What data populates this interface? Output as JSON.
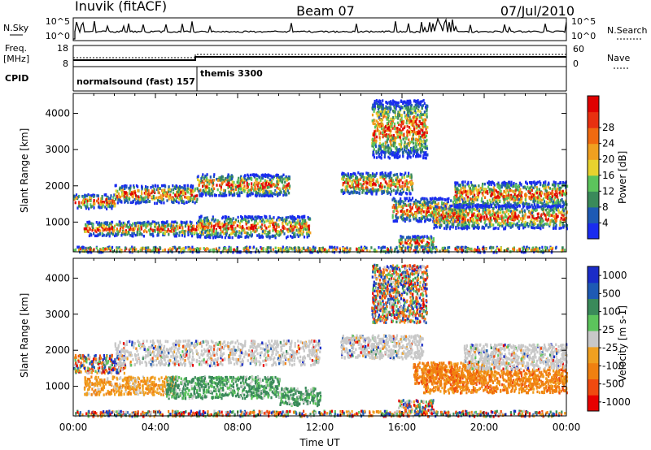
{
  "header": {
    "station": "Inuvik (fitACF)",
    "beam": "Beam 07",
    "date": "07/Jul/2010"
  },
  "strips": {
    "nsky_label": "N.Sky",
    "nsky_ticks": [
      "10^5",
      "10^0"
    ],
    "nsearch_label": "N.Search",
    "nsearch_ticks": [
      "10^5",
      "10^0"
    ],
    "freq_label": "Freq.",
    "freq_unit": "[MHz]",
    "freq_ticks": [
      "18",
      "8"
    ],
    "nave_label": "Nave",
    "nave_ticks": [
      "60",
      "0"
    ],
    "cpid_label": "CPID",
    "cpid_segments": [
      {
        "label": "normalsound (fast) 157",
        "start_h": 0,
        "end_h": 6
      },
      {
        "label": "themis 3300",
        "start_h": 6,
        "end_h": 24
      }
    ]
  },
  "chart_data": [
    {
      "type": "heatmap",
      "name": "power",
      "ylabel": "Slant Range [km]",
      "ylim": [
        180,
        4550
      ],
      "yticks": [
        "1000",
        "2000",
        "3000",
        "4000"
      ],
      "xlim": [
        0,
        24
      ],
      "colorbar_label": "Power [dB]",
      "colorbar_ticks": [
        "4",
        "8",
        "12",
        "16",
        "20",
        "24",
        "28"
      ],
      "colorbar_colors": [
        "#1a2cf0",
        "#1e5ab4",
        "#3a8a5a",
        "#5cc45c",
        "#e8d22e",
        "#f0a020",
        "#f06a10",
        "#e83010",
        "#e00000"
      ],
      "scatter_bands": [
        {
          "t0": 0.0,
          "t1": 2.0,
          "r0": 1400,
          "r1": 1800
        },
        {
          "t0": 2.0,
          "t1": 6.0,
          "r0": 1550,
          "r1": 2050
        },
        {
          "t0": 6.0,
          "t1": 10.5,
          "r0": 1750,
          "r1": 2350
        },
        {
          "t0": 0.5,
          "t1": 6.0,
          "r0": 650,
          "r1": 1050
        },
        {
          "t0": 6.0,
          "t1": 11.5,
          "r0": 600,
          "r1": 1200
        },
        {
          "t0": 13.0,
          "t1": 16.5,
          "r0": 1800,
          "r1": 2400
        },
        {
          "t0": 15.5,
          "t1": 19.0,
          "r0": 1050,
          "r1": 1700
        },
        {
          "t0": 17.5,
          "t1": 24.0,
          "r0": 850,
          "r1": 1500
        },
        {
          "t0": 18.5,
          "t1": 24.0,
          "r0": 1450,
          "r1": 2150
        },
        {
          "t0": 15.8,
          "t1": 17.5,
          "r0": 300,
          "r1": 650
        },
        {
          "t0": 14.5,
          "t1": 17.2,
          "r0": 2800,
          "r1": 4400
        },
        {
          "t0": 0.0,
          "t1": 24.0,
          "r0": 200,
          "r1": 350
        }
      ]
    },
    {
      "type": "heatmap",
      "name": "velocity",
      "ylabel": "Slant Range [km]",
      "ylim": [
        180,
        4550
      ],
      "yticks": [
        "1000",
        "2000",
        "3000",
        "4000"
      ],
      "xlim": [
        0,
        24
      ],
      "xticks": [
        "00:00",
        "04:00",
        "08:00",
        "12:00",
        "16:00",
        "20:00",
        "00:00"
      ],
      "xlabel": "Time UT",
      "colorbar_label": "Velocity [m s-1]",
      "colorbar_ticks": [
        "1000",
        "500",
        "100",
        "25",
        "-25",
        "-100",
        "-500",
        "-1000"
      ],
      "colorbar_colors": [
        "#1a2cc8",
        "#1e5ab4",
        "#3a8a5a",
        "#5cc45c",
        "#c8c8c8",
        "#f0a020",
        "#f08010",
        "#f04a10",
        "#e80000"
      ],
      "scatter_bands": [
        {
          "t0": 0.0,
          "t1": 2.5,
          "r0": 1400,
          "r1": 1900
        },
        {
          "t0": 2.0,
          "t1": 12.0,
          "r0": 1600,
          "r1": 2300
        },
        {
          "t0": 0.5,
          "t1": 5.0,
          "r0": 800,
          "r1": 1300
        },
        {
          "t0": 4.5,
          "t1": 10.0,
          "r0": 700,
          "r1": 1300
        },
        {
          "t0": 10.0,
          "t1": 12.0,
          "r0": 500,
          "r1": 1000
        },
        {
          "t0": 13.0,
          "t1": 17.0,
          "r0": 1800,
          "r1": 2450
        },
        {
          "t0": 16.5,
          "t1": 20.0,
          "r0": 1100,
          "r1": 1700
        },
        {
          "t0": 17.0,
          "t1": 24.0,
          "r0": 850,
          "r1": 1500
        },
        {
          "t0": 19.0,
          "t1": 24.0,
          "r0": 1500,
          "r1": 2200
        },
        {
          "t0": 15.8,
          "t1": 17.5,
          "r0": 300,
          "r1": 650
        },
        {
          "t0": 14.5,
          "t1": 17.2,
          "r0": 2800,
          "r1": 4400
        },
        {
          "t0": 0.0,
          "t1": 24.0,
          "r0": 200,
          "r1": 350
        }
      ]
    }
  ]
}
